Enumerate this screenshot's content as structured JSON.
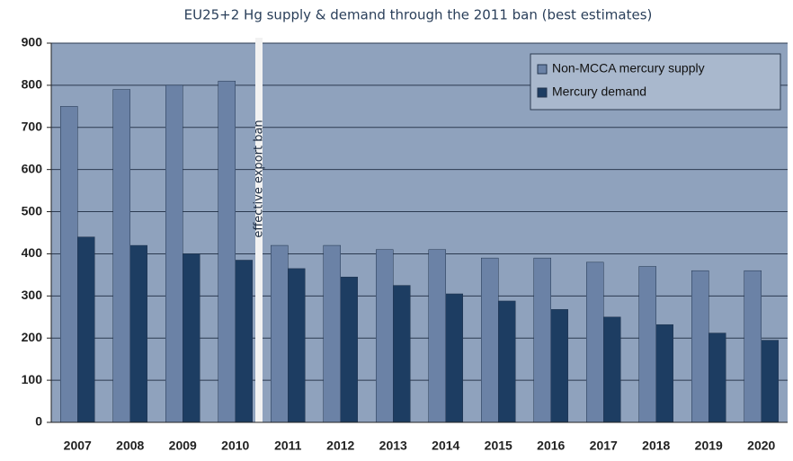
{
  "chart_data": {
    "type": "bar",
    "title": "EU25+2 Hg supply & demand through the 2011 ban (best estimates)",
    "annotation": "effective export ban",
    "categories": [
      "2007",
      "2008",
      "2009",
      "2010",
      "2011",
      "2012",
      "2013",
      "2014",
      "2015",
      "2016",
      "2017",
      "2018",
      "2019",
      "2020"
    ],
    "series": [
      {
        "name": "Non-MCCA mercury supply",
        "color": "#6b82a6",
        "values": [
          750,
          790,
          800,
          810,
          420,
          420,
          410,
          410,
          390,
          390,
          380,
          370,
          360,
          360
        ]
      },
      {
        "name": "Mercury demand",
        "color": "#1d3d62",
        "values": [
          440,
          420,
          400,
          385,
          365,
          345,
          325,
          305,
          288,
          268,
          250,
          232,
          212,
          195
        ]
      }
    ],
    "ylim": [
      0,
      900
    ],
    "yticks": [
      0,
      100,
      200,
      300,
      400,
      500,
      600,
      700,
      800,
      900
    ],
    "grid": true,
    "legend": "upper right"
  }
}
